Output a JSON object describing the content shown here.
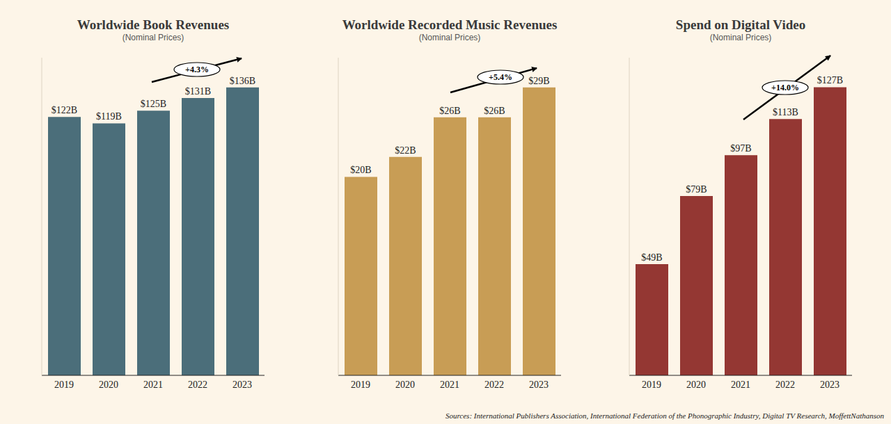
{
  "chart_data": [
    {
      "type": "bar",
      "title": "Worldwide Book Revenues",
      "subtitle": "(Nominal Prices)",
      "categories": [
        "2019",
        "2020",
        "2021",
        "2022",
        "2023"
      ],
      "values": [
        122,
        119,
        125,
        131,
        136
      ],
      "value_labels": [
        "$122B",
        "$119B",
        "$125B",
        "$131B",
        "$136B"
      ],
      "data_labels": true,
      "color": "#4b6e7a",
      "ylim": [
        0,
        150
      ],
      "tick_labels": "x",
      "annotation": "+4.3%"
    },
    {
      "type": "bar",
      "title": "Worldwide Recorded Music Revenues",
      "subtitle": "(Nominal Prices)",
      "categories": [
        "2019",
        "2020",
        "2021",
        "2022",
        "2023"
      ],
      "values": [
        20,
        22,
        26,
        26,
        29
      ],
      "value_labels": [
        "$20B",
        "$22B",
        "$26B",
        "$26B",
        "$29B"
      ],
      "data_labels": true,
      "color": "#c89d55",
      "ylim": [
        0,
        32
      ],
      "tick_labels": "x",
      "annotation": "+5.4%"
    },
    {
      "type": "bar",
      "title": "Spend on Digital Video",
      "subtitle": "(Nominal Prices)",
      "categories": [
        "2019",
        "2020",
        "2021",
        "2022",
        "2023"
      ],
      "values": [
        49,
        79,
        97,
        113,
        127
      ],
      "value_labels": [
        "$49B",
        "$79B",
        "$97B",
        "$113B",
        "$127B"
      ],
      "data_labels": true,
      "color": "#943733",
      "ylim": [
        0,
        140
      ],
      "tick_labels": "x",
      "annotation": "+14.0%"
    }
  ],
  "source": "Sources: International Publishers Association, International Federation of the Phonographic Industry, Digital TV Research, MoffettNathanson"
}
